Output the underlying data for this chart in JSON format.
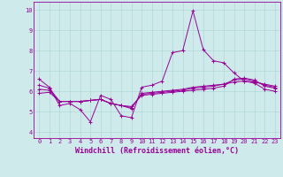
{
  "bg_color": "#ceeaea",
  "grid_color": "#b0d8d8",
  "line_color": "#990099",
  "xlabel": "Windchill (Refroidissement éolien,°C)",
  "xlabel_fontsize": 6,
  "yticks": [
    4,
    5,
    6,
    7,
    8,
    9,
    10
  ],
  "xticks": [
    0,
    1,
    2,
    3,
    4,
    5,
    6,
    7,
    8,
    9,
    10,
    11,
    12,
    13,
    14,
    15,
    16,
    17,
    18,
    19,
    20,
    21,
    22,
    23
  ],
  "xlim": [
    -0.5,
    23.5
  ],
  "ylim": [
    3.7,
    10.4
  ],
  "series": [
    [
      6.6,
      6.2,
      5.3,
      5.4,
      5.1,
      4.5,
      5.8,
      5.6,
      4.8,
      4.7,
      6.2,
      6.3,
      6.5,
      7.9,
      8.0,
      9.95,
      8.05,
      7.5,
      7.4,
      6.9,
      6.5,
      6.4,
      6.1,
      6.0
    ],
    [
      6.3,
      6.15,
      5.5,
      5.5,
      5.5,
      5.55,
      5.6,
      5.4,
      5.3,
      5.15,
      5.9,
      5.95,
      6.0,
      6.05,
      6.1,
      6.2,
      6.25,
      6.3,
      6.35,
      6.45,
      6.5,
      6.45,
      6.35,
      6.25
    ],
    [
      6.1,
      6.05,
      5.5,
      5.5,
      5.5,
      5.55,
      5.6,
      5.4,
      5.3,
      5.2,
      5.85,
      5.9,
      5.95,
      6.0,
      6.05,
      6.15,
      6.2,
      6.25,
      6.35,
      6.55,
      6.6,
      6.5,
      6.3,
      6.2
    ],
    [
      5.9,
      5.95,
      5.5,
      5.5,
      5.5,
      5.55,
      5.6,
      5.4,
      5.3,
      5.25,
      5.8,
      5.85,
      5.9,
      5.95,
      6.0,
      6.05,
      6.1,
      6.15,
      6.25,
      6.6,
      6.65,
      6.55,
      6.25,
      6.15
    ]
  ],
  "tick_fontsize": 5,
  "tick_color": "#990099",
  "marker": "+",
  "markersize": 3,
  "linewidth": 0.7
}
